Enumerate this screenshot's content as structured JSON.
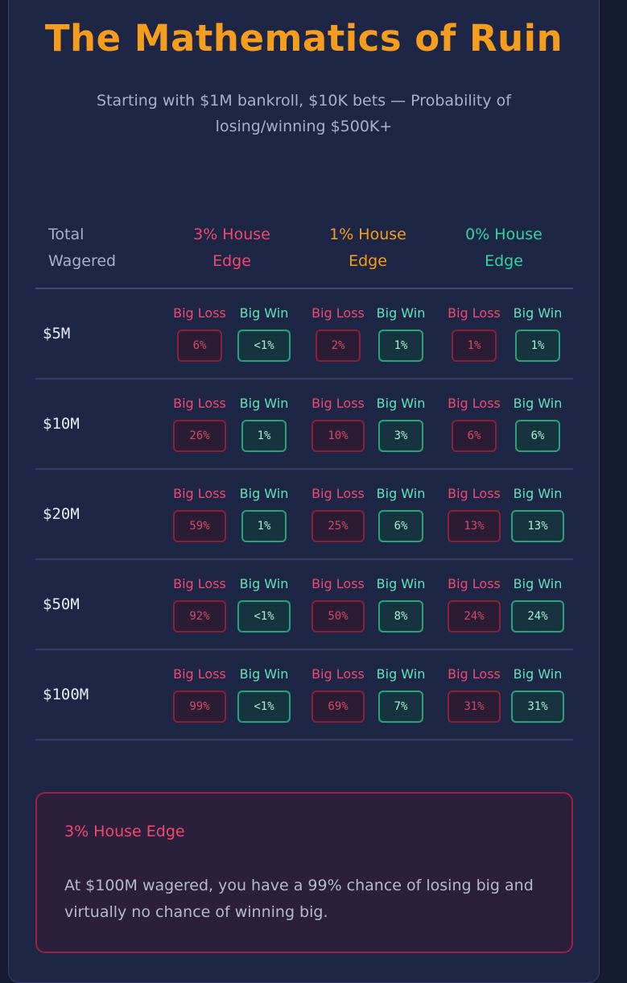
{
  "title": "The Mathematics of Ruin",
  "subtitle": "Starting with $1M bankroll, $10K bets — Probability of losing/winning $500K+",
  "table": {
    "headers": {
      "total": "Total\nWagered",
      "edge3": "3% House\nEdge",
      "edge1": "1% House\nEdge",
      "edge0": "0% House\nEdge"
    },
    "loss_label": "Big Loss",
    "win_label": "Big Win",
    "rows": [
      {
        "amount": "$5M",
        "e3": {
          "loss": "6%",
          "win": "<1%"
        },
        "e1": {
          "loss": "2%",
          "win": "1%"
        },
        "e0": {
          "loss": "1%",
          "win": "1%"
        }
      },
      {
        "amount": "$10M",
        "e3": {
          "loss": "26%",
          "win": "1%"
        },
        "e1": {
          "loss": "10%",
          "win": "3%"
        },
        "e0": {
          "loss": "6%",
          "win": "6%"
        }
      },
      {
        "amount": "$20M",
        "e3": {
          "loss": "59%",
          "win": "1%"
        },
        "e1": {
          "loss": "25%",
          "win": "6%"
        },
        "e0": {
          "loss": "13%",
          "win": "13%"
        }
      },
      {
        "amount": "$50M",
        "e3": {
          "loss": "92%",
          "win": "<1%"
        },
        "e1": {
          "loss": "50%",
          "win": "8%"
        },
        "e0": {
          "loss": "24%",
          "win": "24%"
        }
      },
      {
        "amount": "$100M",
        "e3": {
          "loss": "99%",
          "win": "<1%"
        },
        "e1": {
          "loss": "69%",
          "win": "7%"
        },
        "e0": {
          "loss": "31%",
          "win": "31%"
        }
      }
    ]
  },
  "callout": {
    "title": "3% House Edge",
    "text": "At $100M wagered, you have a 99% chance of losing big and virtually no chance of winning big."
  },
  "colors": {
    "title": "#f79d1e",
    "edge3": "#f0496d",
    "edge1": "#f79d1e",
    "edge0": "#34d39f",
    "background": "#1e2645"
  }
}
